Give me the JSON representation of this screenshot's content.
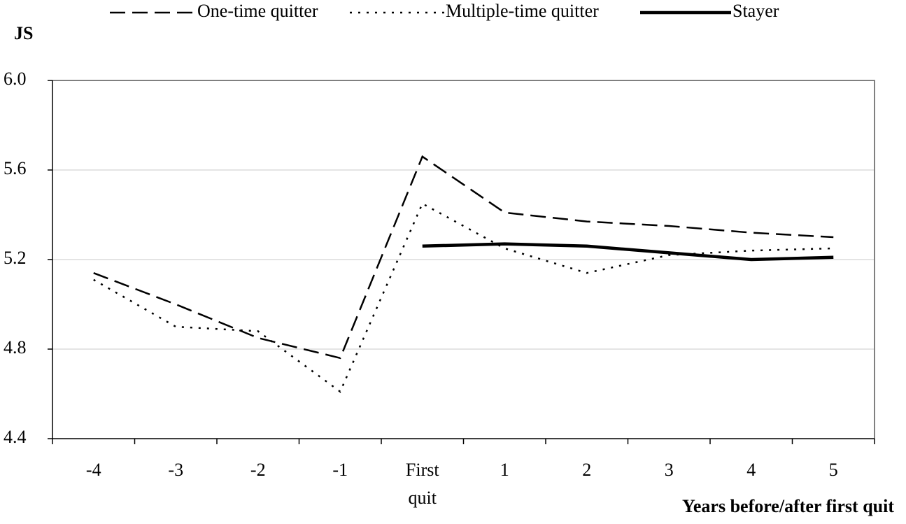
{
  "chart_data": {
    "type": "line",
    "y_label": "JS",
    "x_label": "Years before/after first quit",
    "categories": [
      "-4",
      "-3",
      "-2",
      "-1",
      "First quit",
      "1",
      "2",
      "3",
      "4",
      "5"
    ],
    "series": [
      {
        "name": "One-time quitter",
        "color": "#000000",
        "style": "dashed",
        "values": [
          5.14,
          5.0,
          4.85,
          4.76,
          5.66,
          5.41,
          5.37,
          5.35,
          5.32,
          5.3
        ]
      },
      {
        "name": "Multiple-time quitter",
        "color": "#000000",
        "style": "dotted",
        "values": [
          5.11,
          4.9,
          4.88,
          4.61,
          5.45,
          5.25,
          5.14,
          5.22,
          5.24,
          5.25
        ]
      },
      {
        "name": "Stayer",
        "color": "#000000",
        "style": "solid",
        "values": [
          null,
          null,
          null,
          null,
          5.26,
          5.27,
          5.26,
          5.23,
          5.2,
          5.21
        ]
      }
    ],
    "ylim": [
      4.4,
      6.0
    ],
    "yticks": [
      {
        "value": 4.4,
        "label": "4.4"
      },
      {
        "value": 4.8,
        "label": "4.8"
      },
      {
        "value": 5.2,
        "label": "5.2"
      },
      {
        "value": 5.6,
        "label": "5.6"
      },
      {
        "value": 6.0,
        "label": "6.0"
      }
    ],
    "grid": true,
    "legend": "top"
  }
}
